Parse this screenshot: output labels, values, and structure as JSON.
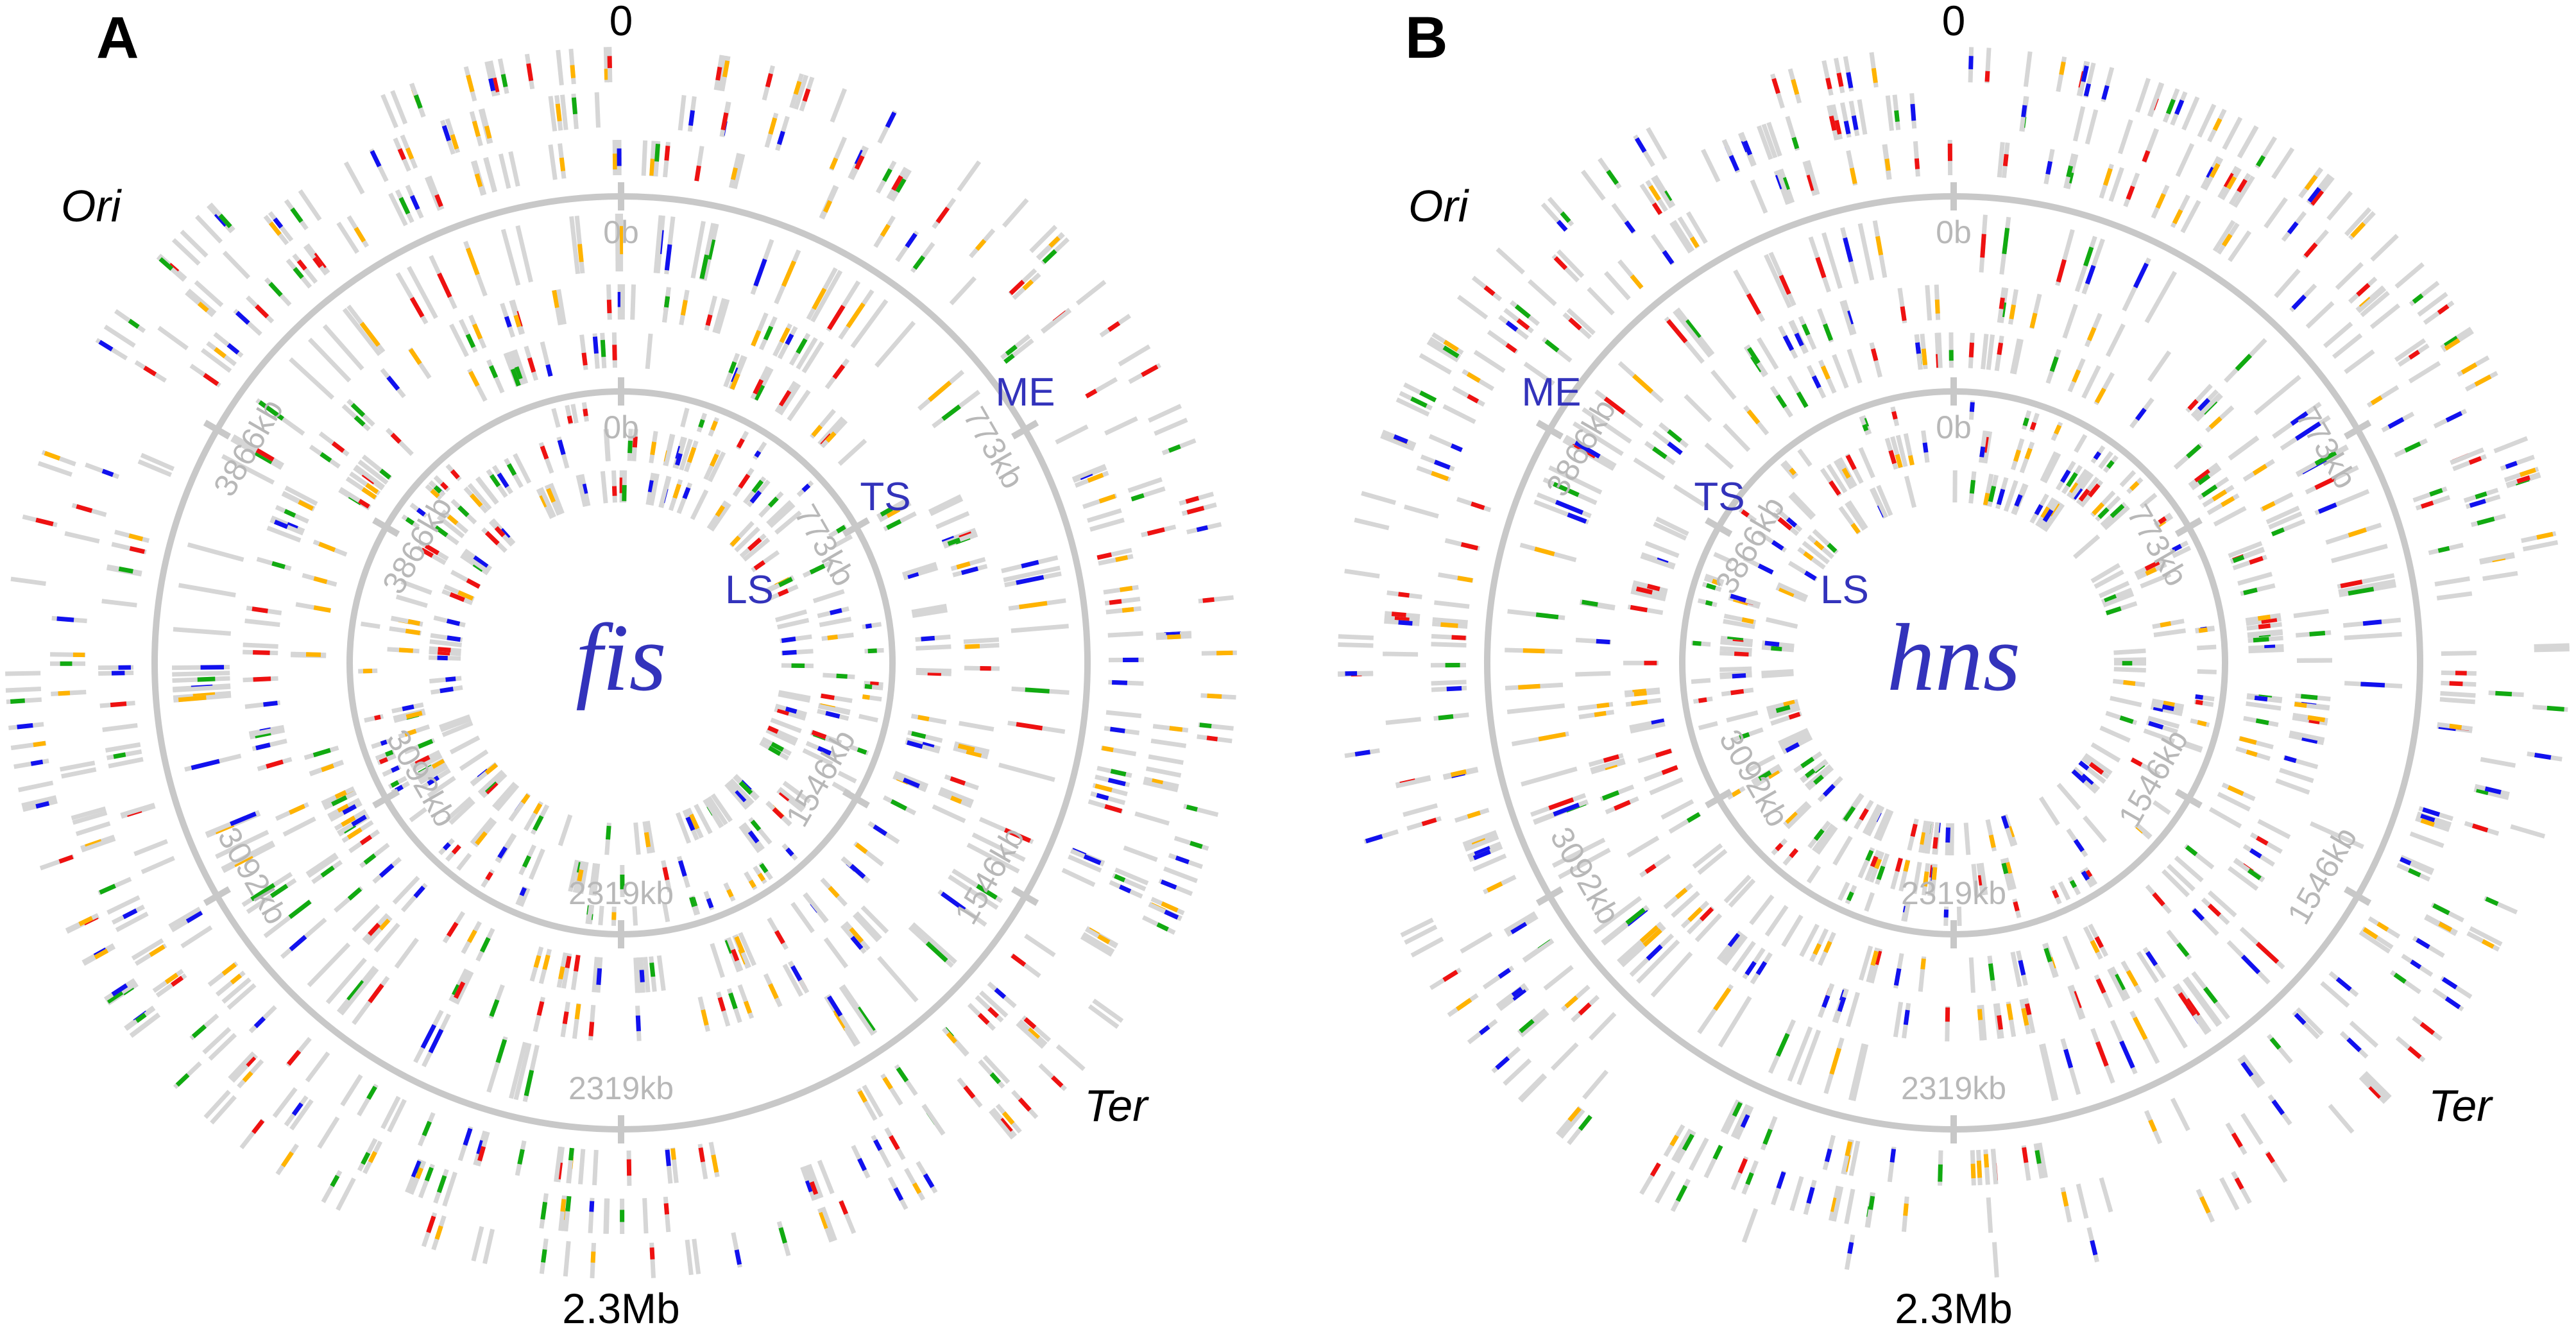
{
  "colors": {
    "ring": "#c8c8c8",
    "tick_label": "#b8b8b8",
    "domain_label": "#3333bb",
    "gene_label": "#3333bb",
    "track_gray": "#d6d6d6",
    "track_red": "#ee1111",
    "track_blue": "#1111ee",
    "track_green": "#11aa11",
    "track_orange": "#ffb300"
  },
  "panels": [
    {
      "letter": "A",
      "gene": "fis",
      "top_label": "0",
      "bottom_label": "2.3Mb",
      "ori_label": "Ori",
      "ter_label": "Ter",
      "domain_labels": {
        "me": "ME",
        "ts": "TS",
        "ls": "LS"
      },
      "outer_ring": {
        "ticks": [
          {
            "label": "0b",
            "angle": 0
          },
          {
            "label": "773kb",
            "angle": 60
          },
          {
            "label": "1546kb",
            "angle": 120
          },
          {
            "label": "2319kb",
            "angle": 180
          },
          {
            "label": "3092kb",
            "angle": 240
          },
          {
            "label": "3866kb",
            "angle": 300
          }
        ]
      },
      "inner_ring": {
        "ticks": [
          {
            "label": "0b",
            "angle": 0
          },
          {
            "label": "773kb",
            "angle": 60
          },
          {
            "label": "1546kb",
            "angle": 120
          },
          {
            "label": "2319kb",
            "angle": 180
          },
          {
            "label": "3092kb",
            "angle": 240
          },
          {
            "label": "3866kb",
            "angle": 300
          }
        ]
      }
    },
    {
      "letter": "B",
      "gene": "hns",
      "top_label": "0",
      "bottom_label": "2.3Mb",
      "ori_label": "Ori",
      "ter_label": "Ter",
      "domain_labels": {
        "me": "ME",
        "ts": "TS",
        "ls": "LS"
      },
      "outer_ring": {
        "ticks": [
          {
            "label": "0b",
            "angle": 0
          },
          {
            "label": "773kb",
            "angle": 60
          },
          {
            "label": "1546kb",
            "angle": 120
          },
          {
            "label": "2319kb",
            "angle": 180
          },
          {
            "label": "3092kb",
            "angle": 240
          },
          {
            "label": "3866kb",
            "angle": 300
          }
        ]
      },
      "inner_ring": {
        "ticks": [
          {
            "label": "0b",
            "angle": 0
          },
          {
            "label": "773kb",
            "angle": 60
          },
          {
            "label": "1546kb",
            "angle": 120
          },
          {
            "label": "2319kb",
            "angle": 180
          },
          {
            "label": "3092kb",
            "angle": 240
          },
          {
            "label": "3866kb",
            "angle": 300
          }
        ]
      }
    }
  ]
}
